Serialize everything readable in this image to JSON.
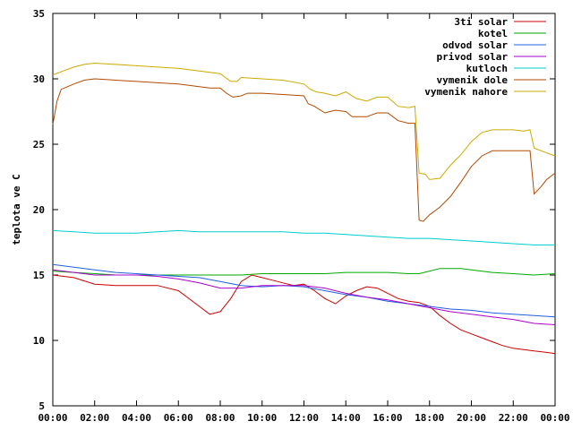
{
  "chart_data": {
    "type": "line",
    "xlabel": "",
    "ylabel": "teplota ve C",
    "ylim": [
      5,
      35
    ],
    "xlim": [
      0,
      24
    ],
    "yticks": [
      5,
      10,
      15,
      20,
      25,
      30,
      35
    ],
    "xticks": [
      "00:00",
      "02:00",
      "04:00",
      "06:00",
      "08:00",
      "10:00",
      "12:00",
      "14:00",
      "16:00",
      "18:00",
      "20:00",
      "22:00",
      "00:00"
    ],
    "grid": false,
    "legend_position": "top-right",
    "series": [
      {
        "name": "3ti solar",
        "color": "#cc0000",
        "points": [
          [
            0,
            15.0
          ],
          [
            1,
            14.8
          ],
          [
            2,
            14.3
          ],
          [
            3,
            14.2
          ],
          [
            4,
            14.2
          ],
          [
            5,
            14.2
          ],
          [
            6,
            13.8
          ],
          [
            7,
            12.6
          ],
          [
            7.5,
            12.0
          ],
          [
            8,
            12.2
          ],
          [
            8.5,
            13.2
          ],
          [
            9,
            14.5
          ],
          [
            9.5,
            15.0
          ],
          [
            10,
            14.8
          ],
          [
            10.5,
            14.6
          ],
          [
            11,
            14.4
          ],
          [
            11.5,
            14.2
          ],
          [
            12,
            14.3
          ],
          [
            12.5,
            13.8
          ],
          [
            13,
            13.2
          ],
          [
            13.5,
            12.8
          ],
          [
            14,
            13.4
          ],
          [
            14.5,
            13.8
          ],
          [
            15,
            14.1
          ],
          [
            15.5,
            14.0
          ],
          [
            16,
            13.6
          ],
          [
            16.5,
            13.2
          ],
          [
            17,
            13.0
          ],
          [
            17.5,
            12.9
          ],
          [
            18,
            12.6
          ],
          [
            18.5,
            11.9
          ],
          [
            19,
            11.3
          ],
          [
            19.5,
            10.8
          ],
          [
            20,
            10.5
          ],
          [
            20.5,
            10.2
          ],
          [
            21,
            9.9
          ],
          [
            21.5,
            9.6
          ],
          [
            22,
            9.4
          ],
          [
            22.5,
            9.3
          ],
          [
            23,
            9.2
          ],
          [
            23.5,
            9.1
          ],
          [
            24,
            9.0
          ]
        ]
      },
      {
        "name": "kotel",
        "color": "#00aa00",
        "points": [
          [
            0,
            15.3
          ],
          [
            1,
            15.2
          ],
          [
            2,
            15.1
          ],
          [
            3,
            15.0
          ],
          [
            4,
            15.0
          ],
          [
            5,
            15.0
          ],
          [
            6,
            15.0
          ],
          [
            7,
            15.0
          ],
          [
            8,
            15.0
          ],
          [
            9,
            15.0
          ],
          [
            10,
            15.1
          ],
          [
            11,
            15.1
          ],
          [
            12,
            15.1
          ],
          [
            13,
            15.1
          ],
          [
            14,
            15.2
          ],
          [
            15,
            15.2
          ],
          [
            16,
            15.2
          ],
          [
            17,
            15.1
          ],
          [
            17.5,
            15.1
          ],
          [
            18,
            15.3
          ],
          [
            18.5,
            15.5
          ],
          [
            19,
            15.5
          ],
          [
            19.5,
            15.5
          ],
          [
            20,
            15.4
          ],
          [
            21,
            15.2
          ],
          [
            22,
            15.1
          ],
          [
            23,
            15.0
          ],
          [
            24,
            15.1
          ]
        ]
      },
      {
        "name": "odvod solar",
        "color": "#1f5fe0",
        "points": [
          [
            0,
            15.8
          ],
          [
            1,
            15.6
          ],
          [
            2,
            15.4
          ],
          [
            3,
            15.2
          ],
          [
            4,
            15.1
          ],
          [
            5,
            15.0
          ],
          [
            6,
            14.9
          ],
          [
            7,
            14.8
          ],
          [
            8,
            14.5
          ],
          [
            9,
            14.2
          ],
          [
            10,
            14.1
          ],
          [
            11,
            14.2
          ],
          [
            12,
            14.1
          ],
          [
            13,
            13.8
          ],
          [
            14,
            13.5
          ],
          [
            15,
            13.3
          ],
          [
            16,
            13.0
          ],
          [
            17,
            12.8
          ],
          [
            18,
            12.6
          ],
          [
            19,
            12.4
          ],
          [
            20,
            12.3
          ],
          [
            21,
            12.1
          ],
          [
            22,
            12.0
          ],
          [
            23,
            11.9
          ],
          [
            24,
            11.8
          ]
        ]
      },
      {
        "name": "privod solar",
        "color": "#aa00cc",
        "points": [
          [
            0,
            15.4
          ],
          [
            1,
            15.2
          ],
          [
            2,
            15.0
          ],
          [
            3,
            15.0
          ],
          [
            4,
            15.0
          ],
          [
            5,
            14.9
          ],
          [
            6,
            14.7
          ],
          [
            7,
            14.4
          ],
          [
            8,
            14.0
          ],
          [
            9,
            14.0
          ],
          [
            10,
            14.2
          ],
          [
            11,
            14.2
          ],
          [
            12,
            14.2
          ],
          [
            13,
            14.0
          ],
          [
            14,
            13.6
          ],
          [
            15,
            13.3
          ],
          [
            16,
            13.1
          ],
          [
            17,
            12.8
          ],
          [
            18,
            12.5
          ],
          [
            19,
            12.2
          ],
          [
            20,
            12.0
          ],
          [
            21,
            11.8
          ],
          [
            22,
            11.6
          ],
          [
            23,
            11.3
          ],
          [
            24,
            11.2
          ]
        ]
      },
      {
        "name": "kutloch",
        "color": "#00cccc",
        "points": [
          [
            0,
            18.4
          ],
          [
            1,
            18.3
          ],
          [
            2,
            18.2
          ],
          [
            3,
            18.2
          ],
          [
            4,
            18.2
          ],
          [
            5,
            18.3
          ],
          [
            6,
            18.4
          ],
          [
            7,
            18.3
          ],
          [
            8,
            18.3
          ],
          [
            9,
            18.3
          ],
          [
            10,
            18.3
          ],
          [
            11,
            18.3
          ],
          [
            12,
            18.2
          ],
          [
            13,
            18.2
          ],
          [
            14,
            18.1
          ],
          [
            15,
            18.0
          ],
          [
            16,
            17.9
          ],
          [
            17,
            17.8
          ],
          [
            18,
            17.8
          ],
          [
            19,
            17.7
          ],
          [
            20,
            17.6
          ],
          [
            21,
            17.5
          ],
          [
            22,
            17.4
          ],
          [
            23,
            17.3
          ],
          [
            24,
            17.3
          ]
        ]
      },
      {
        "name": "vymenik dole",
        "color": "#b24a00",
        "points": [
          [
            0,
            26.5
          ],
          [
            0.2,
            28.3
          ],
          [
            0.4,
            29.2
          ],
          [
            1,
            29.6
          ],
          [
            1.5,
            29.9
          ],
          [
            2,
            30.0
          ],
          [
            3,
            29.9
          ],
          [
            4,
            29.8
          ],
          [
            5,
            29.7
          ],
          [
            6,
            29.6
          ],
          [
            7,
            29.4
          ],
          [
            7.5,
            29.3
          ],
          [
            8,
            29.3
          ],
          [
            8.3,
            28.9
          ],
          [
            8.6,
            28.6
          ],
          [
            9,
            28.7
          ],
          [
            9.3,
            28.9
          ],
          [
            10,
            28.9
          ],
          [
            11,
            28.8
          ],
          [
            12,
            28.7
          ],
          [
            12.2,
            28.1
          ],
          [
            12.5,
            27.9
          ],
          [
            13,
            27.4
          ],
          [
            13.5,
            27.6
          ],
          [
            14,
            27.5
          ],
          [
            14.3,
            27.1
          ],
          [
            15,
            27.1
          ],
          [
            15.5,
            27.4
          ],
          [
            16,
            27.4
          ],
          [
            16.5,
            26.8
          ],
          [
            17,
            26.6
          ],
          [
            17.3,
            26.6
          ],
          [
            17.5,
            19.2
          ],
          [
            17.7,
            19.1
          ],
          [
            18,
            19.6
          ],
          [
            18.5,
            20.2
          ],
          [
            19,
            21.0
          ],
          [
            19.5,
            22.1
          ],
          [
            20,
            23.3
          ],
          [
            20.5,
            24.1
          ],
          [
            21,
            24.5
          ],
          [
            21.5,
            24.5
          ],
          [
            22,
            24.5
          ],
          [
            22.5,
            24.5
          ],
          [
            22.8,
            24.5
          ],
          [
            23,
            21.2
          ],
          [
            23.3,
            21.7
          ],
          [
            23.6,
            22.3
          ],
          [
            24,
            22.8
          ]
        ]
      },
      {
        "name": "vymenik nahore",
        "color": "#ccaa00",
        "points": [
          [
            0,
            30.3
          ],
          [
            0.5,
            30.6
          ],
          [
            1,
            30.9
          ],
          [
            1.5,
            31.1
          ],
          [
            2,
            31.2
          ],
          [
            3,
            31.1
          ],
          [
            4,
            31.0
          ],
          [
            5,
            30.9
          ],
          [
            6,
            30.8
          ],
          [
            7,
            30.6
          ],
          [
            7.5,
            30.5
          ],
          [
            8,
            30.4
          ],
          [
            8.5,
            29.8
          ],
          [
            8.8,
            29.8
          ],
          [
            9,
            30.1
          ],
          [
            10,
            30.0
          ],
          [
            11,
            29.9
          ],
          [
            12,
            29.6
          ],
          [
            12.3,
            29.2
          ],
          [
            12.6,
            29.0
          ],
          [
            13,
            28.9
          ],
          [
            13.5,
            28.7
          ],
          [
            14,
            29.0
          ],
          [
            14.5,
            28.5
          ],
          [
            15,
            28.3
          ],
          [
            15.5,
            28.6
          ],
          [
            16,
            28.6
          ],
          [
            16.5,
            27.9
          ],
          [
            17,
            27.8
          ],
          [
            17.3,
            27.9
          ],
          [
            17.5,
            22.8
          ],
          [
            17.8,
            22.7
          ],
          [
            18,
            22.3
          ],
          [
            18.5,
            22.4
          ],
          [
            19,
            23.4
          ],
          [
            19.5,
            24.2
          ],
          [
            20,
            25.2
          ],
          [
            20.5,
            25.9
          ],
          [
            21,
            26.1
          ],
          [
            21.5,
            26.1
          ],
          [
            22,
            26.1
          ],
          [
            22.5,
            26.0
          ],
          [
            22.8,
            26.1
          ],
          [
            23,
            24.7
          ],
          [
            23.5,
            24.4
          ],
          [
            24,
            24.1
          ]
        ]
      }
    ]
  }
}
